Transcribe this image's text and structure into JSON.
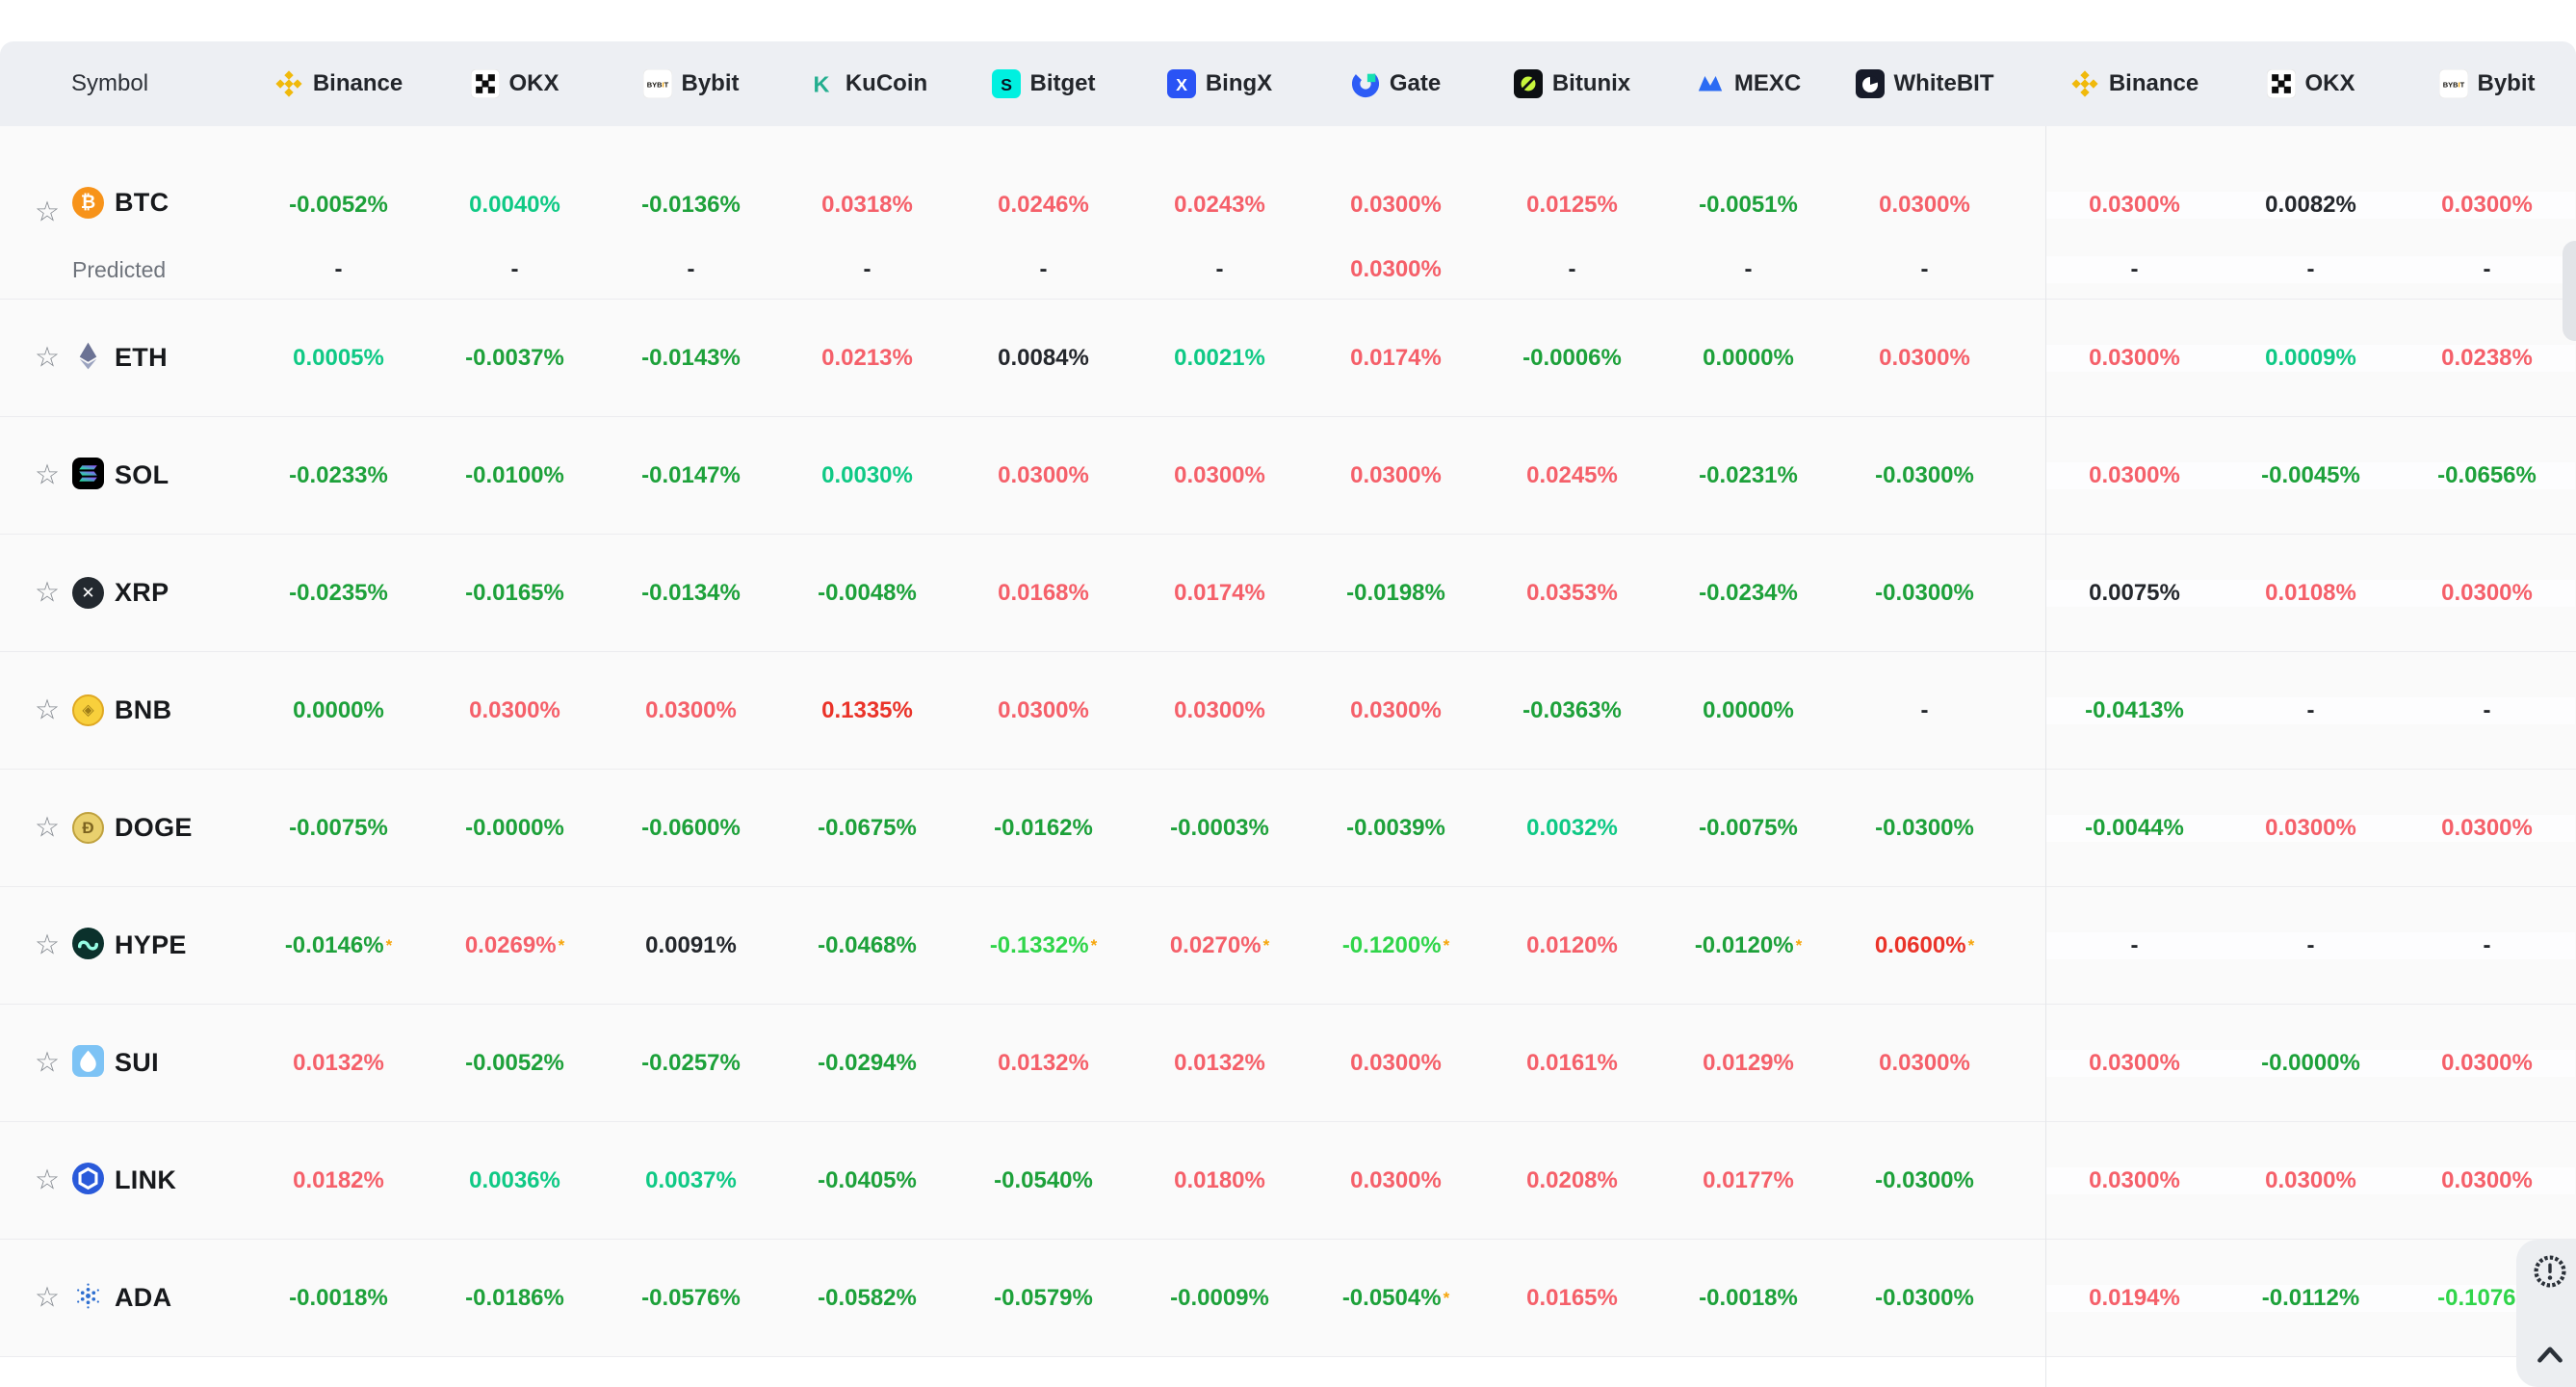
{
  "header": {
    "symbol_label": "Symbol",
    "exchanges": [
      {
        "name": "Binance",
        "icon": "binance-icon",
        "group": 1
      },
      {
        "name": "OKX",
        "icon": "okx-icon",
        "group": 1
      },
      {
        "name": "Bybit",
        "icon": "bybit-icon",
        "group": 1
      },
      {
        "name": "KuCoin",
        "icon": "kucoin-icon",
        "group": 1
      },
      {
        "name": "Bitget",
        "icon": "bitget-icon",
        "group": 1
      },
      {
        "name": "BingX",
        "icon": "bingx-icon",
        "group": 1
      },
      {
        "name": "Gate",
        "icon": "gate-icon",
        "group": 1
      },
      {
        "name": "Bitunix",
        "icon": "bitunix-icon",
        "group": 1
      },
      {
        "name": "MEXC",
        "icon": "mexc-icon",
        "group": 1
      },
      {
        "name": "WhiteBIT",
        "icon": "whitebit-icon",
        "group": 1
      },
      {
        "name": "Binance",
        "icon": "binance-icon",
        "group": 2
      },
      {
        "name": "OKX",
        "icon": "okx-icon",
        "group": 2
      },
      {
        "name": "Bybit",
        "icon": "bybit-icon",
        "group": 2
      }
    ]
  },
  "legend_colors": {
    "green_negative": "#1da13a",
    "teal_positive_low": "#0fc985",
    "bright_green_highlight": "#30d54a",
    "red_positive": "#f5606a",
    "strong_red_highlight": "#ea3329",
    "neutral_dark": "#24272c",
    "asterisk_orange": "#f6a50a"
  },
  "predicted_label": "Predicted",
  "rows": [
    {
      "symbol": "BTC",
      "icon": "btc-icon",
      "values": [
        {
          "v": "-0.0052%",
          "c": "g"
        },
        {
          "v": "0.0040%",
          "c": "t"
        },
        {
          "v": "-0.0136%",
          "c": "g"
        },
        {
          "v": "0.0318%",
          "c": "r"
        },
        {
          "v": "0.0246%",
          "c": "r"
        },
        {
          "v": "0.0243%",
          "c": "r"
        },
        {
          "v": "0.0300%",
          "c": "r"
        },
        {
          "v": "0.0125%",
          "c": "r"
        },
        {
          "v": "-0.0051%",
          "c": "g"
        },
        {
          "v": "0.0300%",
          "c": "r"
        },
        {
          "v": "0.0300%",
          "c": "r"
        },
        {
          "v": "0.0082%",
          "c": "k"
        },
        {
          "v": "0.0300%",
          "c": "r"
        }
      ],
      "predicted": [
        {
          "v": "-",
          "c": "k"
        },
        {
          "v": "-",
          "c": "k"
        },
        {
          "v": "-",
          "c": "k"
        },
        {
          "v": "-",
          "c": "k"
        },
        {
          "v": "-",
          "c": "k"
        },
        {
          "v": "-",
          "c": "k"
        },
        {
          "v": "0.0300%",
          "c": "r"
        },
        {
          "v": "-",
          "c": "k"
        },
        {
          "v": "-",
          "c": "k"
        },
        {
          "v": "-",
          "c": "k"
        },
        {
          "v": "-",
          "c": "k"
        },
        {
          "v": "-",
          "c": "k"
        },
        {
          "v": "-",
          "c": "k"
        }
      ]
    },
    {
      "symbol": "ETH",
      "icon": "eth-icon",
      "values": [
        {
          "v": "0.0005%",
          "c": "t"
        },
        {
          "v": "-0.0037%",
          "c": "g"
        },
        {
          "v": "-0.0143%",
          "c": "g"
        },
        {
          "v": "0.0213%",
          "c": "r"
        },
        {
          "v": "0.0084%",
          "c": "k"
        },
        {
          "v": "0.0021%",
          "c": "t"
        },
        {
          "v": "0.0174%",
          "c": "r"
        },
        {
          "v": "-0.0006%",
          "c": "g"
        },
        {
          "v": "0.0000%",
          "c": "g"
        },
        {
          "v": "0.0300%",
          "c": "r"
        },
        {
          "v": "0.0300%",
          "c": "r"
        },
        {
          "v": "0.0009%",
          "c": "t"
        },
        {
          "v": "0.0238%",
          "c": "r"
        }
      ]
    },
    {
      "symbol": "SOL",
      "icon": "sol-icon",
      "values": [
        {
          "v": "-0.0233%",
          "c": "g"
        },
        {
          "v": "-0.0100%",
          "c": "g"
        },
        {
          "v": "-0.0147%",
          "c": "g"
        },
        {
          "v": "0.0030%",
          "c": "t"
        },
        {
          "v": "0.0300%",
          "c": "r"
        },
        {
          "v": "0.0300%",
          "c": "r"
        },
        {
          "v": "0.0300%",
          "c": "r"
        },
        {
          "v": "0.0245%",
          "c": "r"
        },
        {
          "v": "-0.0231%",
          "c": "g"
        },
        {
          "v": "-0.0300%",
          "c": "g"
        },
        {
          "v": "0.0300%",
          "c": "r"
        },
        {
          "v": "-0.0045%",
          "c": "g"
        },
        {
          "v": "-0.0656%",
          "c": "g"
        }
      ]
    },
    {
      "symbol": "XRP",
      "icon": "xrp-icon",
      "values": [
        {
          "v": "-0.0235%",
          "c": "g"
        },
        {
          "v": "-0.0165%",
          "c": "g"
        },
        {
          "v": "-0.0134%",
          "c": "g"
        },
        {
          "v": "-0.0048%",
          "c": "g"
        },
        {
          "v": "0.0168%",
          "c": "r"
        },
        {
          "v": "0.0174%",
          "c": "r"
        },
        {
          "v": "-0.0198%",
          "c": "g"
        },
        {
          "v": "0.0353%",
          "c": "r"
        },
        {
          "v": "-0.0234%",
          "c": "g"
        },
        {
          "v": "-0.0300%",
          "c": "g"
        },
        {
          "v": "0.0075%",
          "c": "k"
        },
        {
          "v": "0.0108%",
          "c": "r"
        },
        {
          "v": "0.0300%",
          "c": "r"
        }
      ]
    },
    {
      "symbol": "BNB",
      "icon": "bnb-icon",
      "values": [
        {
          "v": "0.0000%",
          "c": "g"
        },
        {
          "v": "0.0300%",
          "c": "r"
        },
        {
          "v": "0.0300%",
          "c": "r"
        },
        {
          "v": "0.1335%",
          "c": "R"
        },
        {
          "v": "0.0300%",
          "c": "r"
        },
        {
          "v": "0.0300%",
          "c": "r"
        },
        {
          "v": "0.0300%",
          "c": "r"
        },
        {
          "v": "-0.0363%",
          "c": "g"
        },
        {
          "v": "0.0000%",
          "c": "g"
        },
        {
          "v": "-",
          "c": "k"
        },
        {
          "v": "-0.0413%",
          "c": "g"
        },
        {
          "v": "-",
          "c": "k"
        },
        {
          "v": "-",
          "c": "k"
        }
      ]
    },
    {
      "symbol": "DOGE",
      "icon": "doge-icon",
      "values": [
        {
          "v": "-0.0075%",
          "c": "g"
        },
        {
          "v": "-0.0000%",
          "c": "g"
        },
        {
          "v": "-0.0600%",
          "c": "g"
        },
        {
          "v": "-0.0675%",
          "c": "g"
        },
        {
          "v": "-0.0162%",
          "c": "g"
        },
        {
          "v": "-0.0003%",
          "c": "g"
        },
        {
          "v": "-0.0039%",
          "c": "g"
        },
        {
          "v": "0.0032%",
          "c": "t"
        },
        {
          "v": "-0.0075%",
          "c": "g"
        },
        {
          "v": "-0.0300%",
          "c": "g"
        },
        {
          "v": "-0.0044%",
          "c": "g"
        },
        {
          "v": "0.0300%",
          "c": "r"
        },
        {
          "v": "0.0300%",
          "c": "r"
        }
      ]
    },
    {
      "symbol": "HYPE",
      "icon": "hype-icon",
      "values": [
        {
          "v": "-0.0146%",
          "c": "g",
          "a": true
        },
        {
          "v": "0.0269%",
          "c": "r",
          "a": true
        },
        {
          "v": "0.0091%",
          "c": "k"
        },
        {
          "v": "-0.0468%",
          "c": "g"
        },
        {
          "v": "-0.1332%",
          "c": "G",
          "a": true
        },
        {
          "v": "0.0270%",
          "c": "r",
          "a": true
        },
        {
          "v": "-0.1200%",
          "c": "G",
          "a": true
        },
        {
          "v": "0.0120%",
          "c": "r"
        },
        {
          "v": "-0.0120%",
          "c": "g",
          "a": true
        },
        {
          "v": "0.0600%",
          "c": "R",
          "a": true
        },
        {
          "v": "-",
          "c": "k"
        },
        {
          "v": "-",
          "c": "k"
        },
        {
          "v": "-",
          "c": "k"
        }
      ]
    },
    {
      "symbol": "SUI",
      "icon": "sui-icon",
      "values": [
        {
          "v": "0.0132%",
          "c": "r"
        },
        {
          "v": "-0.0052%",
          "c": "g"
        },
        {
          "v": "-0.0257%",
          "c": "g"
        },
        {
          "v": "-0.0294%",
          "c": "g"
        },
        {
          "v": "0.0132%",
          "c": "r"
        },
        {
          "v": "0.0132%",
          "c": "r"
        },
        {
          "v": "0.0300%",
          "c": "r"
        },
        {
          "v": "0.0161%",
          "c": "r"
        },
        {
          "v": "0.0129%",
          "c": "r"
        },
        {
          "v": "0.0300%",
          "c": "r"
        },
        {
          "v": "0.0300%",
          "c": "r"
        },
        {
          "v": "-0.0000%",
          "c": "g"
        },
        {
          "v": "0.0300%",
          "c": "r"
        }
      ]
    },
    {
      "symbol": "LINK",
      "icon": "link-icon",
      "values": [
        {
          "v": "0.0182%",
          "c": "r"
        },
        {
          "v": "0.0036%",
          "c": "t"
        },
        {
          "v": "0.0037%",
          "c": "t"
        },
        {
          "v": "-0.0405%",
          "c": "g"
        },
        {
          "v": "-0.0540%",
          "c": "g"
        },
        {
          "v": "0.0180%",
          "c": "r"
        },
        {
          "v": "0.0300%",
          "c": "r"
        },
        {
          "v": "0.0208%",
          "c": "r"
        },
        {
          "v": "0.0177%",
          "c": "r"
        },
        {
          "v": "-0.0300%",
          "c": "g"
        },
        {
          "v": "0.0300%",
          "c": "r"
        },
        {
          "v": "0.0300%",
          "c": "r"
        },
        {
          "v": "0.0300%",
          "c": "r"
        }
      ]
    },
    {
      "symbol": "ADA",
      "icon": "ada-icon",
      "values": [
        {
          "v": "-0.0018%",
          "c": "g"
        },
        {
          "v": "-0.0186%",
          "c": "g"
        },
        {
          "v": "-0.0576%",
          "c": "g"
        },
        {
          "v": "-0.0582%",
          "c": "g"
        },
        {
          "v": "-0.0579%",
          "c": "g"
        },
        {
          "v": "-0.0009%",
          "c": "g"
        },
        {
          "v": "-0.0504%",
          "c": "g",
          "a": true
        },
        {
          "v": "0.0165%",
          "c": "r"
        },
        {
          "v": "-0.0018%",
          "c": "g"
        },
        {
          "v": "-0.0300%",
          "c": "g"
        },
        {
          "v": "0.0194%",
          "c": "r"
        },
        {
          "v": "-0.0112%",
          "c": "g"
        },
        {
          "v": "-0.1076%",
          "c": "G"
        }
      ]
    }
  ],
  "corner": {
    "badge_icon": "alert-badge-icon",
    "scroll_top_icon": "chevron-up-icon"
  },
  "scrollbar": {
    "thumb_visible": true
  }
}
